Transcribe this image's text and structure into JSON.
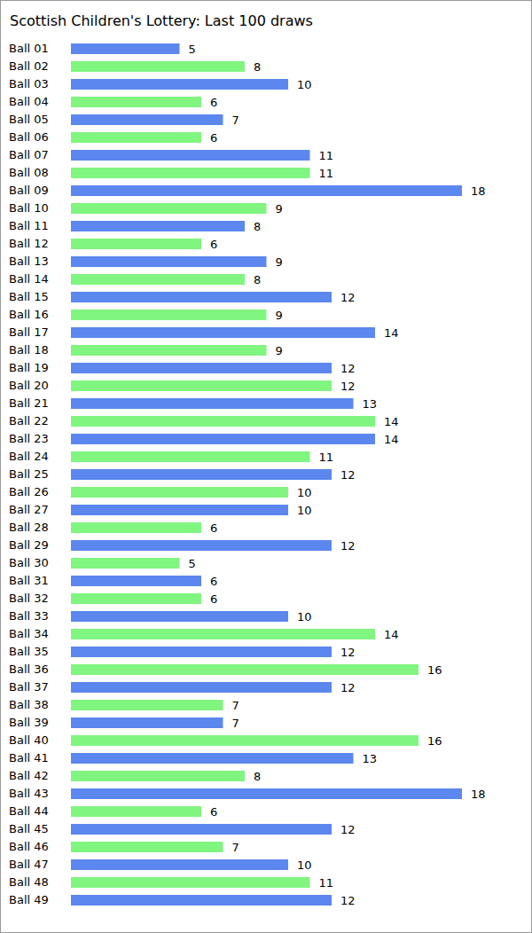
{
  "chart_data": {
    "type": "bar",
    "title": "Scottish Children's Lottery: Last 100 draws",
    "orientation": "horizontal",
    "categories": [
      "Ball 01",
      "Ball 02",
      "Ball 03",
      "Ball 04",
      "Ball 05",
      "Ball 06",
      "Ball 07",
      "Ball 08",
      "Ball 09",
      "Ball 10",
      "Ball 11",
      "Ball 12",
      "Ball 13",
      "Ball 14",
      "Ball 15",
      "Ball 16",
      "Ball 17",
      "Ball 18",
      "Ball 19",
      "Ball 20",
      "Ball 21",
      "Ball 22",
      "Ball 23",
      "Ball 24",
      "Ball 25",
      "Ball 26",
      "Ball 27",
      "Ball 28",
      "Ball 29",
      "Ball 30",
      "Ball 31",
      "Ball 32",
      "Ball 33",
      "Ball 34",
      "Ball 35",
      "Ball 36",
      "Ball 37",
      "Ball 38",
      "Ball 39",
      "Ball 40",
      "Ball 41",
      "Ball 42",
      "Ball 43",
      "Ball 44",
      "Ball 45",
      "Ball 46",
      "Ball 47",
      "Ball 48",
      "Ball 49"
    ],
    "values": [
      5,
      8,
      10,
      6,
      7,
      6,
      11,
      11,
      18,
      9,
      8,
      6,
      9,
      8,
      12,
      9,
      14,
      9,
      12,
      12,
      13,
      14,
      14,
      11,
      12,
      10,
      10,
      6,
      12,
      5,
      6,
      6,
      10,
      14,
      12,
      16,
      12,
      7,
      7,
      16,
      13,
      8,
      18,
      6,
      12,
      7,
      10,
      11,
      12
    ],
    "colors": [
      "#5b87ef",
      "#80f580",
      "#5b87ef",
      "#80f580",
      "#5b87ef",
      "#80f580",
      "#5b87ef",
      "#80f580",
      "#5b87ef",
      "#80f580",
      "#5b87ef",
      "#80f580",
      "#5b87ef",
      "#80f580",
      "#5b87ef",
      "#80f580",
      "#5b87ef",
      "#80f580",
      "#5b87ef",
      "#80f580",
      "#5b87ef",
      "#80f580",
      "#5b87ef",
      "#80f580",
      "#5b87ef",
      "#80f580",
      "#5b87ef",
      "#80f580",
      "#5b87ef",
      "#80f580",
      "#5b87ef",
      "#80f580",
      "#5b87ef",
      "#80f580",
      "#5b87ef",
      "#80f580",
      "#5b87ef",
      "#80f580",
      "#5b87ef",
      "#80f580",
      "#5b87ef",
      "#80f580",
      "#5b87ef",
      "#80f580",
      "#5b87ef",
      "#80f580",
      "#5b87ef",
      "#80f580",
      "#5b87ef"
    ],
    "xlim": [
      0,
      18
    ],
    "data_labels": true,
    "tick_labels": "y",
    "grid": false
  }
}
